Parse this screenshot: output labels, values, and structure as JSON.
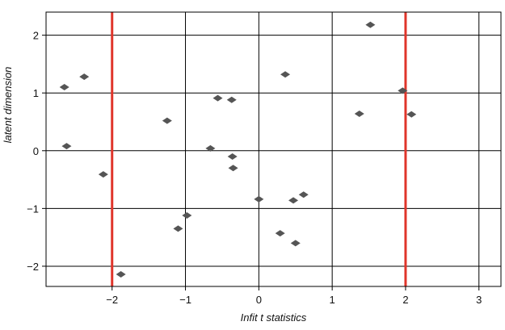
{
  "chart_data": {
    "type": "scatter",
    "title": "",
    "xlabel": "Infit t statistics",
    "ylabel": "latent dimension",
    "xlim": [
      -2.9,
      3.3
    ],
    "ylim": [
      -2.35,
      2.4
    ],
    "x_ticks": [
      -2,
      -1,
      0,
      1,
      2,
      3
    ],
    "y_ticks": [
      -2,
      -1,
      0,
      1,
      2
    ],
    "x_tick_labels": [
      "−2",
      "−1",
      "0",
      "1",
      "2",
      "3"
    ],
    "y_tick_labels": [
      "−2",
      "−1",
      "0",
      "1",
      "2"
    ],
    "grid": true,
    "marker": "diamond",
    "colors": {
      "points": "#555555",
      "reference_lines": "#e0352b",
      "grid": "#000000"
    },
    "reference_lines_x": [
      -2,
      2
    ],
    "points": [
      {
        "x": 1.52,
        "y": 2.18
      },
      {
        "x": -2.65,
        "y": 1.1
      },
      {
        "x": -2.38,
        "y": 1.28
      },
      {
        "x": 0.36,
        "y": 1.32
      },
      {
        "x": 1.96,
        "y": 1.04
      },
      {
        "x": -0.56,
        "y": 0.91
      },
      {
        "x": -0.37,
        "y": 0.88
      },
      {
        "x": 1.37,
        "y": 0.64
      },
      {
        "x": 2.08,
        "y": 0.63
      },
      {
        "x": -1.25,
        "y": 0.52
      },
      {
        "x": -2.62,
        "y": 0.08
      },
      {
        "x": -0.66,
        "y": 0.04
      },
      {
        "x": -0.36,
        "y": -0.1
      },
      {
        "x": -0.35,
        "y": -0.3
      },
      {
        "x": -2.12,
        "y": -0.41
      },
      {
        "x": 0.0,
        "y": -0.84
      },
      {
        "x": 0.47,
        "y": -0.86
      },
      {
        "x": 0.61,
        "y": -0.76
      },
      {
        "x": -0.98,
        "y": -1.12
      },
      {
        "x": -1.1,
        "y": -1.35
      },
      {
        "x": 0.29,
        "y": -1.43
      },
      {
        "x": 0.5,
        "y": -1.6
      },
      {
        "x": -1.88,
        "y": -2.14
      }
    ]
  }
}
